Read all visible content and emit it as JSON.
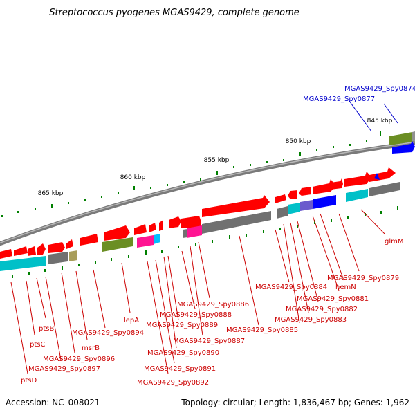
{
  "title": "Streptococcus pyogenes MGAS9429, complete genome",
  "footer": {
    "accession": "Accession: NC_008021",
    "summary": "Topology: circular; Length: 1,836,467 bp; Genes: 1,962"
  },
  "kbp_labels": [
    "845 kbp",
    "850 kbp",
    "855 kbp",
    "860 kbp",
    "865 kbp"
  ],
  "gene_labels": {
    "blue": [
      "MGAS9429_Spy0874",
      "MGAS9429_Spy0877"
    ],
    "red": [
      "glmM",
      "MGAS9429_Spy0879",
      "hemN",
      "MGAS9429_Spy0881",
      "MGAS9429_Spy0882",
      "MGAS9429_Spy0883",
      "MGAS9429_Spy0884",
      "MGAS9429_Spy0885",
      "MGAS9429_Spy0886",
      "MGAS9429_Spy0887",
      "MGAS9429_Spy0888",
      "MGAS9429_Spy0889",
      "MGAS9429_Spy0890",
      "MGAS9429_Spy0891",
      "MGAS9429_Spy0892",
      "lepA",
      "MGAS9429_Spy0894",
      "msrB",
      "MGAS9429_Spy0896",
      "MGAS9429_Spy0897",
      "ptsB",
      "ptsC",
      "ptsD"
    ]
  },
  "colors": {
    "forward_gene": "#ff0000",
    "highlight_gene": "#0000ff",
    "backbone": "#808080",
    "tick": "#008000",
    "label_red": "#cc0000",
    "label_blue": "#0000cc"
  }
}
